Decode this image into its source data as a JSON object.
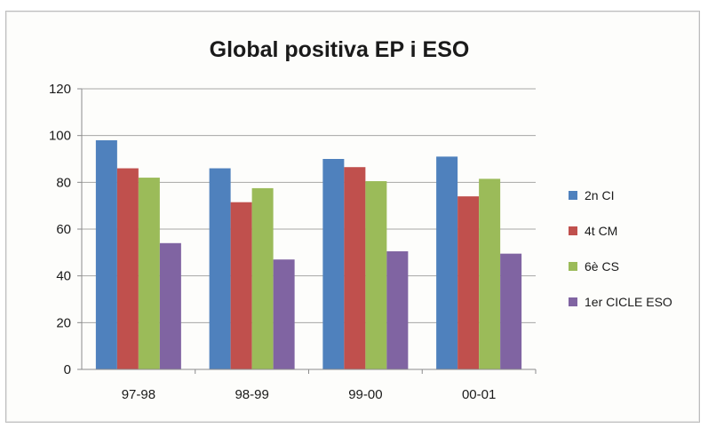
{
  "chart_data": {
    "type": "bar",
    "title": "Global positiva  EP i ESO",
    "xlabel": "",
    "ylabel": "",
    "categories": [
      "97-98",
      "98-99",
      "99-00",
      "00-01"
    ],
    "series": [
      {
        "name": "2n CI",
        "color": "#4f81bd",
        "values": [
          98,
          86,
          90,
          91
        ]
      },
      {
        "name": "4t CM",
        "color": "#c0504d",
        "values": [
          86,
          71.5,
          86.5,
          74
        ]
      },
      {
        "name": "6è CS",
        "color": "#9bbb59",
        "values": [
          82,
          77.5,
          80.5,
          81.5
        ]
      },
      {
        "name": "1er CICLE ESO",
        "color": "#8064a2",
        "values": [
          54,
          47,
          50.5,
          49.5
        ]
      }
    ],
    "ylim": [
      0,
      120
    ],
    "yticks": [
      "0",
      "20",
      "40",
      "60",
      "80",
      "100",
      "120"
    ],
    "grid": true,
    "legend": "right"
  }
}
